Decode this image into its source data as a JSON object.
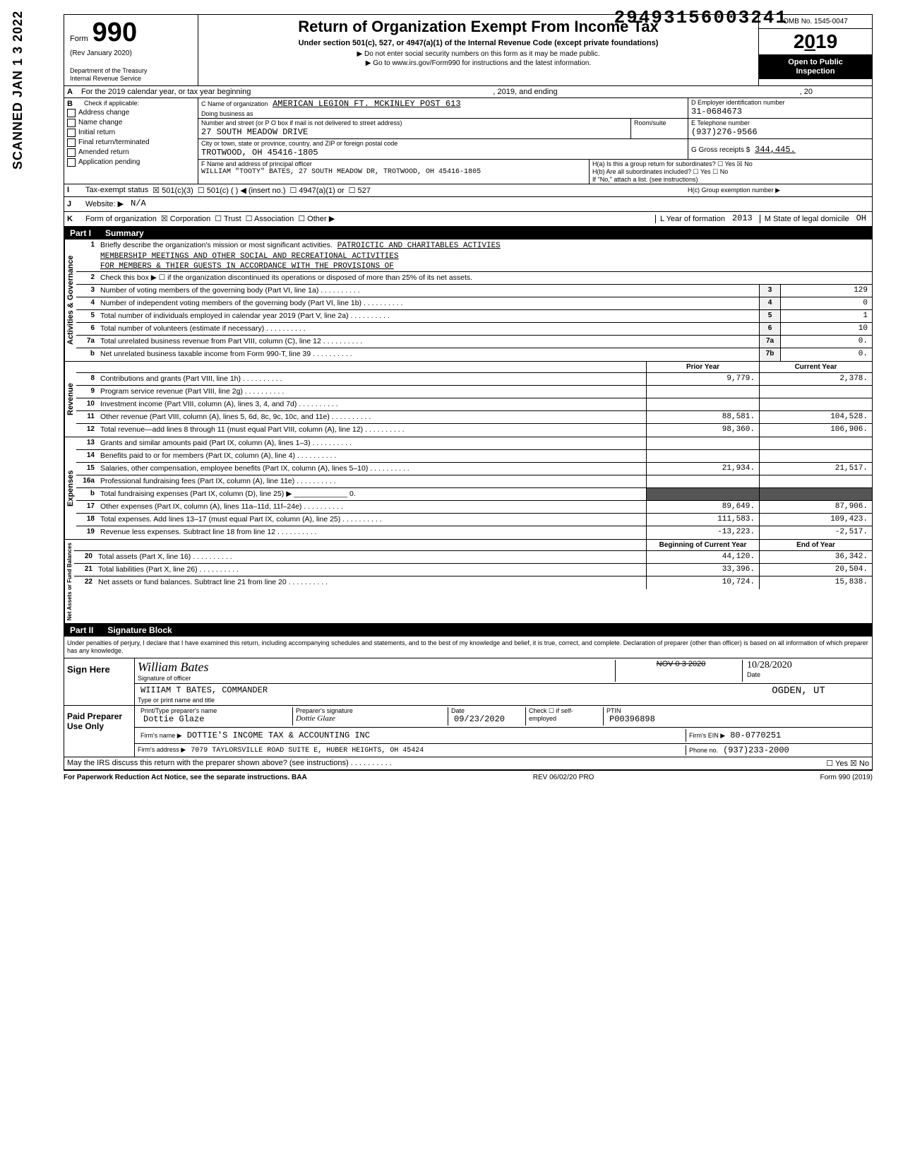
{
  "doc_number": "29493156003241",
  "scanned_stamp": "SCANNED JAN 1 3 2022",
  "header": {
    "form_word": "Form",
    "form_number": "990",
    "rev": "(Rev January 2020)",
    "dept1": "Department of the Treasury",
    "dept2": "Internal Revenue Service",
    "title": "Return of Organization Exempt From Income Tax",
    "subtitle": "Under section 501(c), 527, or 4947(a)(1) of the Internal Revenue Code (except private foundations)",
    "instr1": "▶ Do not enter social security numbers on this form as it may be made public.",
    "instr2": "▶ Go to www.irs.gov/Form990 for instructions and the latest information.",
    "omb": "OMB No. 1545-0047",
    "year": "2019",
    "open1": "Open to Public",
    "open2": "Inspection"
  },
  "row_a": {
    "letter": "A",
    "text": "For the 2019 calendar year, or tax year beginning",
    "mid": ", 2019, and ending",
    "end": ", 20"
  },
  "col_b": {
    "letter": "B",
    "label": "Check if applicable:",
    "items": [
      "Address change",
      "Name change",
      "Initial return",
      "Final return/terminated",
      "Amended return",
      "Application pending"
    ]
  },
  "org": {
    "c_label": "C Name of organization",
    "name": "AMERICAN LEGION FT. MCKINLEY POST 613",
    "dba_label": "Doing business as",
    "street_label": "Number and street (or P O box if mail is not delivered to street address)",
    "street": "27 SOUTH MEADOW DRIVE",
    "room_label": "Room/suite",
    "city_label": "City or town, state or province, country, and ZIP or foreign postal code",
    "city": "TROTWOOD, OH 45416-1805",
    "f_label": "F Name and address of principal officer",
    "officer": "WILLIAM \"TOOTY\" BATES, 27 SOUTH MEADOW DR, TROTWOOD, OH 45416-1805"
  },
  "right_box": {
    "d_label": "D Employer identification number",
    "ein": "31-0684673",
    "e_label": "E Telephone number",
    "phone": "(937)276-9566",
    "g_label": "G Gross receipts $",
    "gross": "344,445.",
    "ha": "H(a) Is this a group return for subordinates? ☐ Yes ☒ No",
    "hb": "H(b) Are all subordinates included? ☐ Yes ☐ No",
    "hb2": "If \"No,\" attach a list. (see instructions)",
    "hc": "H(c) Group exemption number ▶"
  },
  "status_row": {
    "i": "I",
    "label": "Tax-exempt status",
    "c3": "☒ 501(c)(3)",
    "c": "☐ 501(c) (      ) ◀ (insert no.)",
    "a1": "☐ 4947(a)(1) or",
    "s527": "☐ 527"
  },
  "website_row": {
    "j": "J",
    "label": "Website: ▶",
    "val": "N/A"
  },
  "k_row": {
    "k": "K",
    "label": "Form of organization",
    "corp": "☒ Corporation",
    "trust": "☐ Trust",
    "assoc": "☐ Association",
    "other": "☐ Other ▶",
    "l": "L Year of formation",
    "l_val": "2013",
    "m": "M State of legal domicile",
    "m_val": "OH"
  },
  "part1": {
    "num": "Part I",
    "title": "Summary"
  },
  "mission": {
    "num": "1",
    "lead": "Briefly describe the organization's mission or most significant activities.",
    "l1": "PATROICTIC AND CHARITABLES ACTIVIES",
    "l2": "MEMBERSHIP MEETINGS AND OTHER SOCIAL AND RECREATIONAL ACTIVITIES",
    "l3": "FOR MEMBERS & THIER GUESTS IN ACCORDANCE WITH THE PROVISIONS OF"
  },
  "gov_lines": [
    {
      "n": "2",
      "t": "Check this box ▶ ☐ if the organization discontinued its operations or disposed of more than 25% of its net assets."
    },
    {
      "n": "3",
      "t": "Number of voting members of the governing body (Part VI, line 1a)",
      "box": "3",
      "v": "129"
    },
    {
      "n": "4",
      "t": "Number of independent voting members of the governing body (Part VI, line 1b)",
      "box": "4",
      "v": "0"
    },
    {
      "n": "5",
      "t": "Total number of individuals employed in calendar year 2019 (Part V, line 2a)",
      "box": "5",
      "v": "1"
    },
    {
      "n": "6",
      "t": "Total number of volunteers (estimate if necessary)",
      "box": "6",
      "v": "10"
    },
    {
      "n": "7a",
      "t": "Total unrelated business revenue from Part VIII, column (C), line 12",
      "box": "7a",
      "v": "0."
    },
    {
      "n": "b",
      "t": "Net unrelated business taxable income from Form 990-T, line 39",
      "box": "7b",
      "v": "0."
    }
  ],
  "twocol_head": {
    "prior": "Prior Year",
    "current": "Current Year"
  },
  "revenue": [
    {
      "n": "8",
      "t": "Contributions and grants (Part VIII, line 1h)",
      "p": "9,779.",
      "c": "2,378."
    },
    {
      "n": "9",
      "t": "Program service revenue (Part VIII, line 2g)",
      "p": "",
      "c": ""
    },
    {
      "n": "10",
      "t": "Investment income (Part VIII, column (A), lines 3, 4, and 7d)",
      "p": "",
      "c": ""
    },
    {
      "n": "11",
      "t": "Other revenue (Part VIII, column (A), lines 5, 6d, 8c, 9c, 10c, and 11e)",
      "p": "88,581.",
      "c": "104,528."
    },
    {
      "n": "12",
      "t": "Total revenue—add lines 8 through 11 (must equal Part VIII, column (A), line 12)",
      "p": "98,360.",
      "c": "106,906."
    }
  ],
  "expenses": [
    {
      "n": "13",
      "t": "Grants and similar amounts paid (Part IX, column (A), lines 1–3)",
      "p": "",
      "c": ""
    },
    {
      "n": "14",
      "t": "Benefits paid to or for members (Part IX, column (A), line 4)",
      "p": "",
      "c": ""
    },
    {
      "n": "15",
      "t": "Salaries, other compensation, employee benefits (Part IX, column (A), lines 5–10)",
      "p": "21,934.",
      "c": "21,517."
    },
    {
      "n": "16a",
      "t": "Professional fundraising fees (Part IX, column (A), line 11e)",
      "p": "",
      "c": ""
    },
    {
      "n": "b",
      "t": "Total fundraising expenses (Part IX, column (D), line 25) ▶ _____________ 0.",
      "shaded": true
    },
    {
      "n": "17",
      "t": "Other expenses (Part IX, column (A), lines 11a–11d, 11f–24e)",
      "p": "89,649.",
      "c": "87,906."
    },
    {
      "n": "18",
      "t": "Total expenses. Add lines 13–17 (must equal Part IX, column (A), line 25)",
      "p": "111,583.",
      "c": "109,423."
    },
    {
      "n": "19",
      "t": "Revenue less expenses. Subtract line 18 from line 12",
      "p": "-13,223.",
      "c": "-2,517."
    }
  ],
  "net_head": {
    "begin": "Beginning of Current Year",
    "end": "End of Year"
  },
  "net": [
    {
      "n": "20",
      "t": "Total assets (Part X, line 16)",
      "p": "44,120.",
      "c": "36,342."
    },
    {
      "n": "21",
      "t": "Total liabilities (Part X, line 26)",
      "p": "33,396.",
      "c": "20,504."
    },
    {
      "n": "22",
      "t": "Net assets or fund balances. Subtract line 21 from line 20",
      "p": "10,724.",
      "c": "15,838."
    }
  ],
  "part2": {
    "num": "Part II",
    "title": "Signature Block"
  },
  "penalty": "Under penalties of perjury, I declare that I have examined this return, including accompanying schedules and statements, and to the best of my knowledge and belief, it is true, correct, and complete. Declaration of preparer (other than officer) is based on all information of which preparer has any knowledge.",
  "sign": {
    "label": "Sign Here",
    "sig_label": "Signature of officer",
    "date_label": "Date",
    "date_stamp": "NOV 0 3 2020",
    "date_written": "10/28/2020",
    "name": "WIIIAM T BATES, COMMANDER",
    "name_label": "Type or print name and title",
    "stamp": "OGDEN, UT"
  },
  "preparer": {
    "label": "Paid Preparer Use Only",
    "name_label": "Print/Type preparer's name",
    "name": "Dottie Glaze",
    "sig_label": "Preparer's signature",
    "date_label": "Date",
    "date": "09/23/2020",
    "check_label": "Check ☐ if self-employed",
    "ptin_label": "PTIN",
    "ptin": "P00396898",
    "firm_label": "Firm's name ▶",
    "firm": "DOTTIE'S INCOME TAX & ACCOUNTING INC",
    "ein_label": "Firm's EIN ▶",
    "ein": "80-0770251",
    "addr_label": "Firm's address ▶",
    "addr": "7079 TAYLORSVILLE ROAD SUITE E, HUBER HEIGHTS, OH 45424",
    "phone_label": "Phone no.",
    "phone": "(937)233-2000"
  },
  "discuss": {
    "t": "May the IRS discuss this return with the preparer shown above? (see instructions)",
    "yn": "☐ Yes  ☒ No"
  },
  "footer": {
    "left": "For Paperwork Reduction Act Notice, see the separate instructions. BAA",
    "mid": "REV 06/02/20 PRO",
    "right": "Form 990 (2019)"
  },
  "sidebars": {
    "gov": "Activities & Governance",
    "rev": "Revenue",
    "exp": "Expenses",
    "net": "Net Assets or Fund Balances"
  }
}
